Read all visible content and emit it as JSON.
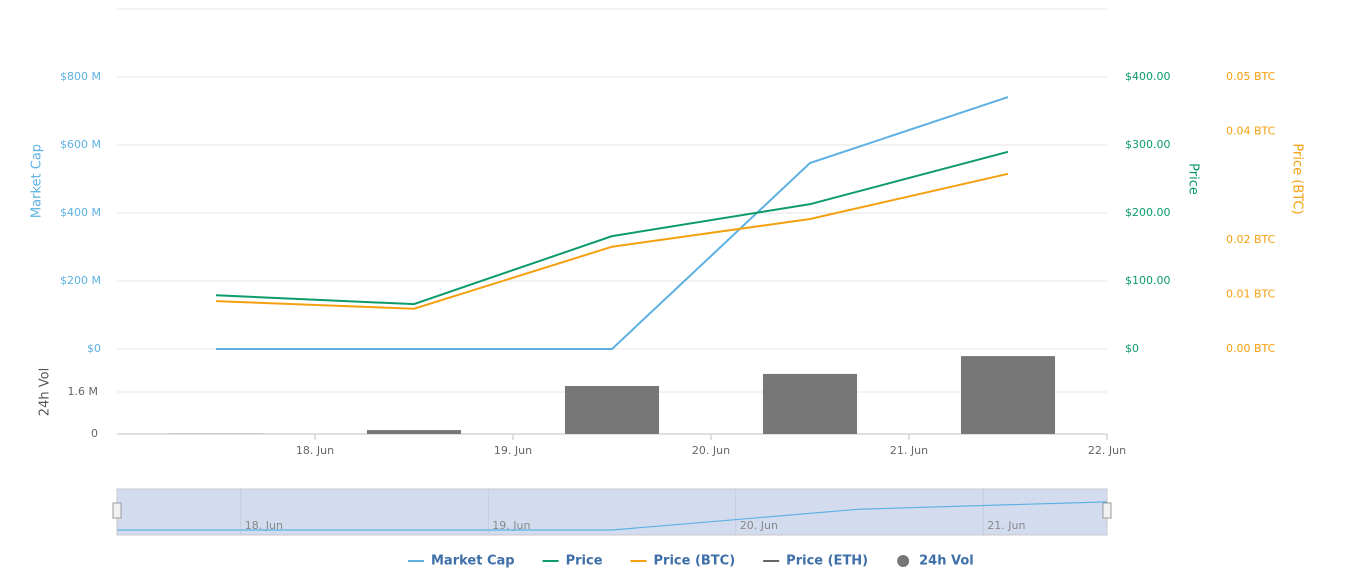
{
  "chart_data": [
    {
      "type": "line",
      "x": [
        17.5,
        18.5,
        19.5,
        20.5,
        21.5
      ],
      "xlim": [
        17,
        22
      ],
      "xticks": [
        {
          "value": 18,
          "label": "18. Jun"
        },
        {
          "value": 19,
          "label": "19. Jun"
        },
        {
          "value": 20,
          "label": "20. Jun"
        },
        {
          "value": 21,
          "label": "21. Jun"
        },
        {
          "value": 22,
          "label": "22. Jun"
        }
      ],
      "ylabel": "Market Cap",
      "ylim": [
        0,
        1000
      ],
      "yticks": [
        {
          "value": 0,
          "label": "$0"
        },
        {
          "value": 200,
          "label": "$200 M"
        },
        {
          "value": 400,
          "label": "$400 M"
        },
        {
          "value": 600,
          "label": "$600 M"
        },
        {
          "value": 800,
          "label": "$800 M"
        }
      ],
      "y2label": "Price",
      "y2lim": [
        0,
        500
      ],
      "y2ticks": [
        {
          "value": 0,
          "label": "$0"
        },
        {
          "value": 100,
          "label": "$100.00"
        },
        {
          "value": 200,
          "label": "$200.00"
        },
        {
          "value": 300,
          "label": "$300.00"
        },
        {
          "value": 400,
          "label": "$400.00"
        }
      ],
      "y3label": "Price (BTC)",
      "y3lim": [
        0,
        0.0625
      ],
      "y3ticks": [
        {
          "value": 0,
          "label": "0.00 BTC"
        },
        {
          "value": 0.01,
          "label": "0.01 BTC"
        },
        {
          "value": 0.02,
          "label": "0.02 BTC"
        },
        {
          "value": 0.04,
          "label": "0.04 BTC"
        },
        {
          "value": 0.05,
          "label": "0.05 BTC"
        }
      ],
      "grid": true,
      "series": [
        {
          "name": "Market Cap",
          "color": "#5db1e2",
          "axis": "y",
          "values": [
            0,
            0,
            0,
            547,
            741
          ]
        },
        {
          "name": "Price",
          "color": "#0d9b6c",
          "axis": "y2",
          "values": [
            79,
            66,
            166,
            213,
            290
          ]
        },
        {
          "name": "Price (BTC)",
          "color": "#f5a010",
          "axis": "y3",
          "values": [
            0.0088,
            0.0074,
            0.0188,
            0.0239,
            0.0322
          ]
        },
        {
          "name": "Price (ETH)",
          "color": "#666666",
          "axis": "y",
          "values": [
            null,
            null,
            null,
            null,
            null
          ]
        }
      ],
      "navigator": {
        "xlim": [
          17.5,
          21.5
        ],
        "xticks": [
          {
            "value": 18,
            "label": "18. Jun"
          },
          {
            "value": 19,
            "label": "19. Jun"
          },
          {
            "value": 20,
            "label": "20. Jun"
          },
          {
            "value": 21,
            "label": "21. Jun"
          }
        ]
      }
    },
    {
      "type": "bar",
      "x": [
        17.5,
        18.5,
        19.5,
        20.5,
        21.5
      ],
      "xlim": [
        17,
        22
      ],
      "ylabel": "24h Vol",
      "ylim": [
        0,
        3.24
      ],
      "yticks": [
        0,
        {
          "value": 1.6,
          "label": "1.6 M"
        }
      ],
      "grid": true,
      "series": [
        {
          "name": "24h Vol",
          "color": "#777777",
          "values": [
            0.01,
            0.15,
            1.83,
            2.29,
            2.97
          ]
        }
      ]
    }
  ]
}
